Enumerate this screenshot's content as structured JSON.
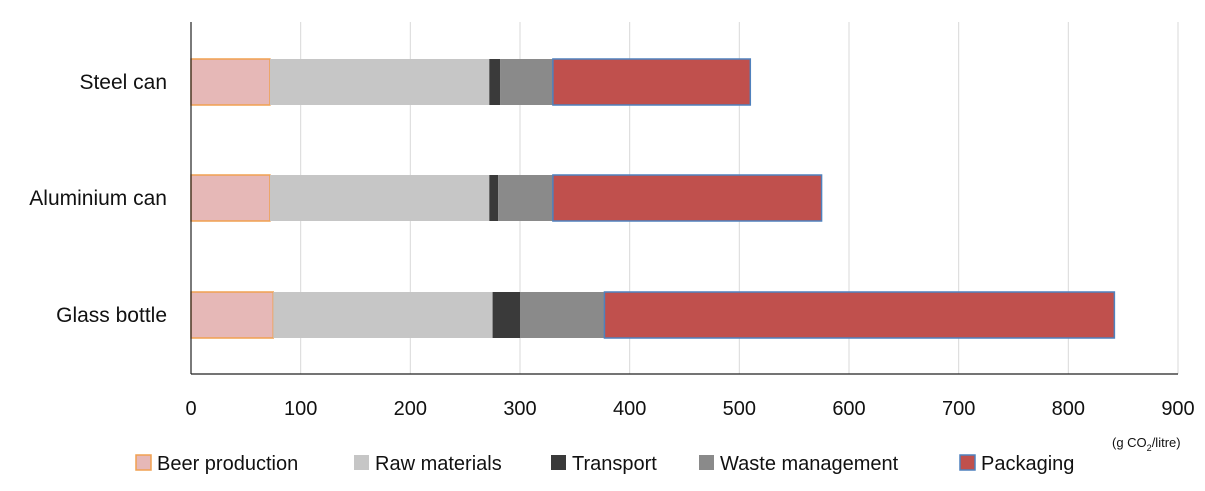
{
  "chart_data": {
    "type": "bar",
    "orientation": "horizontal",
    "stacked": true,
    "categories": [
      "Steel can",
      "Aluminium can",
      "Glass bottle"
    ],
    "series": [
      {
        "name": "Beer production",
        "values": [
          72,
          72,
          75
        ],
        "fill": "#e6b8b7",
        "stroke": "#f0a050"
      },
      {
        "name": "Raw materials",
        "values": [
          200,
          200,
          200
        ],
        "fill": "#c6c6c6",
        "stroke": "#c6c6c6"
      },
      {
        "name": "Transport",
        "values": [
          10,
          8,
          25
        ],
        "fill": "#3a3a3a",
        "stroke": "#3a3a3a"
      },
      {
        "name": "Waste management",
        "values": [
          48,
          50,
          77
        ],
        "fill": "#8a8a8a",
        "stroke": "#8a8a8a"
      },
      {
        "name": "Packaging",
        "values": [
          180,
          245,
          465
        ],
        "fill": "#c0504d",
        "stroke": "#4f81bd"
      }
    ],
    "x_ticks": [
      "0",
      "100",
      "200",
      "300",
      "400",
      "500",
      "600",
      "700",
      "800",
      "900"
    ],
    "xlim": [
      0,
      900
    ],
    "unit_label": {
      "prefix": "(g CO",
      "subscript": "2",
      "suffix": "/litre)"
    },
    "grid": "vertical",
    "legend_position": "bottom"
  }
}
